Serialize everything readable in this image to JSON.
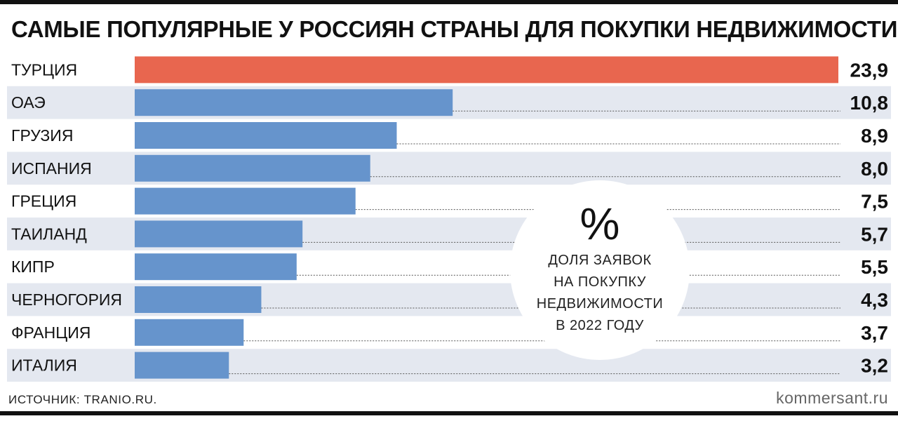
{
  "title": "САМЫЕ ПОПУЛЯРНЫЕ У РОССИЯН СТРАНЫ ДЛЯ ПОКУПКИ НЕДВИЖИМОСТИ",
  "source": "ИСТОЧНИК: TRANIO.RU.",
  "brand": "kommersant.ru",
  "colors": {
    "highlight": "#E8664F",
    "bar": "#6694CC",
    "stripe": "#E4E8F0",
    "text": "#111111"
  },
  "chart_data": {
    "type": "bar",
    "orientation": "horizontal",
    "title": "САМЫЕ ПОПУЛЯРНЫЕ У РОССИЯН СТРАНЫ ДЛЯ ПОКУПКИ НЕДВИЖИМОСТИ",
    "unit_symbol": "%",
    "unit_caption": [
      "ДОЛЯ ЗАЯВОК",
      "НА ПОКУПКУ",
      "НЕДВИЖИМОСТИ",
      "В 2022 ГОДУ"
    ],
    "categories": [
      "ТУРЦИЯ",
      "ОАЭ",
      "ГРУЗИЯ",
      "ИСПАНИЯ",
      "ГРЕЦИЯ",
      "ТАИЛАНД",
      "КИПР",
      "ЧЕРНОГОРИЯ",
      "ФРАНЦИЯ",
      "ИТАЛИЯ"
    ],
    "values": [
      23.9,
      10.8,
      8.9,
      8.0,
      7.5,
      5.7,
      5.5,
      4.3,
      3.7,
      3.2
    ],
    "value_labels": [
      "23,9",
      "10,8",
      "8,9",
      "8,0",
      "7,5",
      "5,7",
      "5,5",
      "4,3",
      "3,7",
      "3,2"
    ],
    "highlight_index": 0,
    "xlim": [
      0,
      23.9
    ]
  }
}
